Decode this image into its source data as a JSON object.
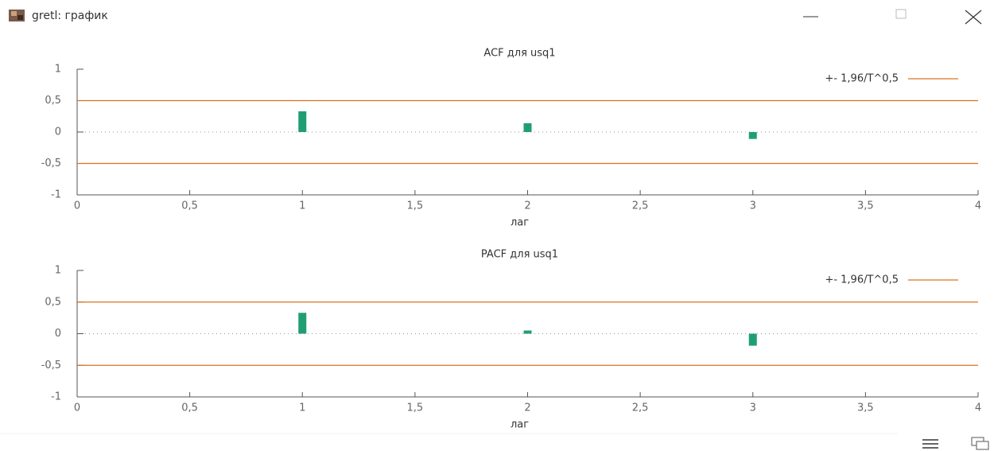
{
  "window": {
    "title": "gretl: график"
  },
  "chart_data": [
    {
      "type": "bar",
      "title": "ACF для usq1",
      "x_label": "лаг",
      "x": [
        1,
        2,
        3
      ],
      "values": [
        0.33,
        0.14,
        -0.11
      ],
      "color": "#1f9e74",
      "xlim": [
        0,
        4
      ],
      "xticks": [
        0,
        {
          "value": 0.5,
          "label": "0,5"
        },
        1,
        {
          "value": 1.5,
          "label": "1,5"
        },
        2,
        {
          "value": 2.5,
          "label": "2,5"
        },
        3,
        {
          "value": 3.5,
          "label": "3,5"
        },
        4
      ],
      "ylim": [
        -1,
        1
      ],
      "yticks": [
        -1,
        {
          "value": -0.5,
          "label": "-0,5"
        },
        0,
        {
          "value": 0.5,
          "label": "0,5"
        },
        1
      ],
      "reference_lines": {
        "name": "+- 1,96/T^0,5",
        "color": "#d9731f",
        "values": [
          0.5,
          -0.5
        ]
      },
      "legend": "upper right"
    },
    {
      "type": "bar",
      "title": "PACF для usq1",
      "x_label": "лаг",
      "x": [
        1,
        2,
        3
      ],
      "values": [
        0.33,
        0.05,
        -0.19
      ],
      "color": "#1f9e74",
      "xlim": [
        0,
        4
      ],
      "xticks": [
        0,
        {
          "value": 0.5,
          "label": "0,5"
        },
        1,
        {
          "value": 1.5,
          "label": "1,5"
        },
        2,
        {
          "value": 2.5,
          "label": "2,5"
        },
        3,
        {
          "value": 3.5,
          "label": "3,5"
        },
        4
      ],
      "ylim": [
        -1,
        1
      ],
      "yticks": [
        -1,
        {
          "value": -0.5,
          "label": "-0,5"
        },
        0,
        {
          "value": 0.5,
          "label": "0,5"
        },
        1
      ],
      "reference_lines": {
        "name": "+- 1,96/T^0,5",
        "color": "#d9731f",
        "values": [
          0.5,
          -0.5
        ]
      },
      "legend": "upper right"
    }
  ]
}
